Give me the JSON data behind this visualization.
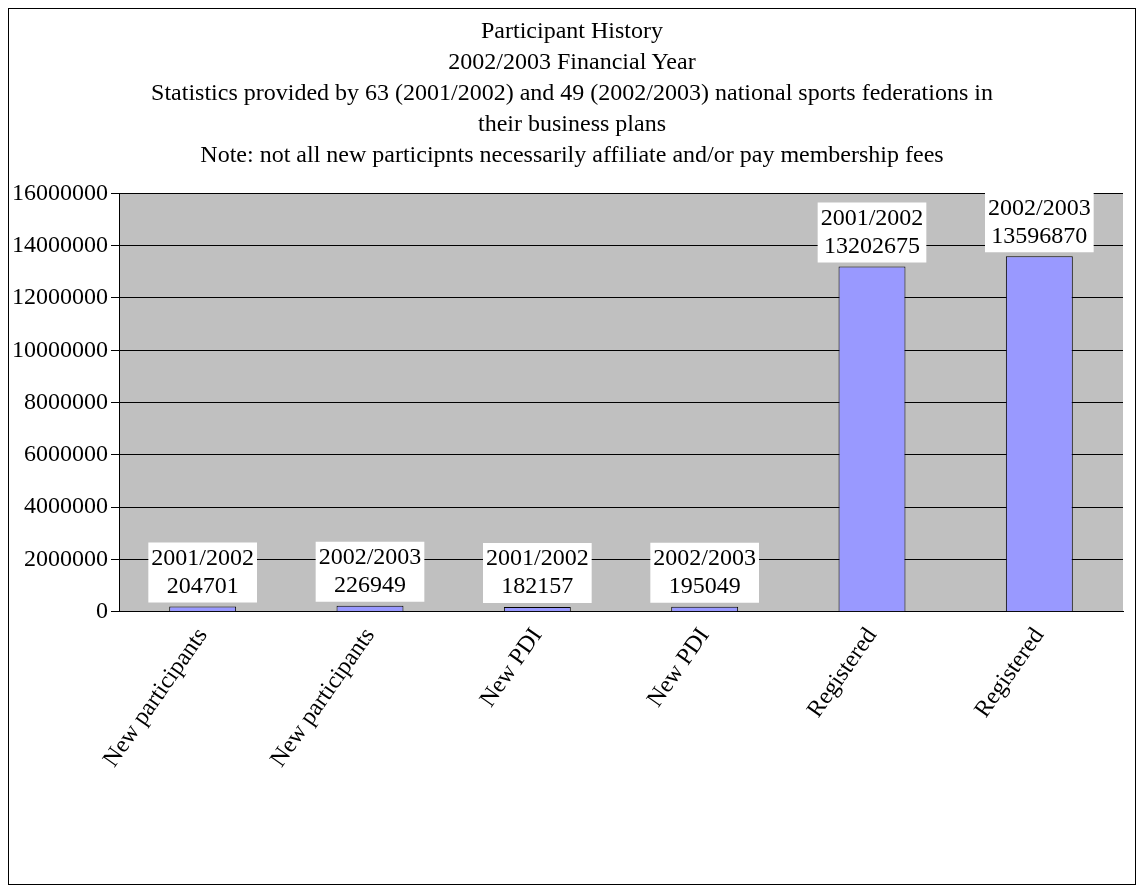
{
  "chart_data": {
    "type": "bar",
    "title": "Participant History",
    "subtitle": "2002/2003 Financial Year",
    "annotations": [
      "Statistics provided by 63 (2001/2002) and 49 (2002/2003) national sports federations in their business plans",
      "Note: not all new participnts necessarily affiliate and/or pay membership fees"
    ],
    "categories": [
      "New participants",
      "New participants",
      "New PDI",
      "New PDI",
      "Registered",
      "Registered"
    ],
    "values": [
      204701,
      226949,
      182157,
      195049,
      13202675,
      13596870
    ],
    "value_labels": [
      "2001/2002\n204701",
      "2002/2003\n226949",
      "2001/2002\n182157",
      "2002/2003\n195049",
      "2001/2002\n13202675",
      "2002/2003\n13596870"
    ],
    "color": "#9999ff",
    "ylim": [
      0,
      16000000
    ],
    "yticks": [
      0,
      2000000,
      4000000,
      6000000,
      8000000,
      10000000,
      12000000,
      14000000,
      16000000
    ],
    "grid": "y",
    "legend": false
  }
}
